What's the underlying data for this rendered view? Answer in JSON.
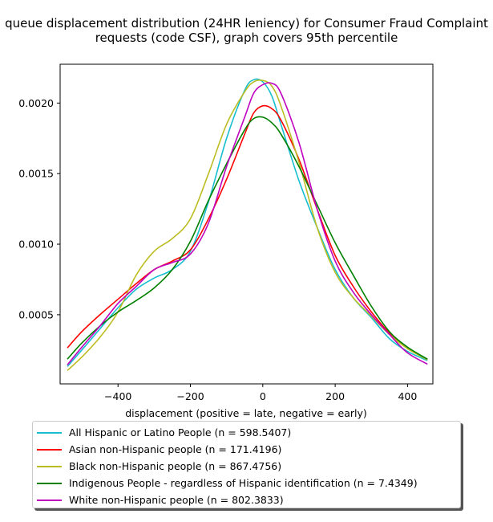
{
  "chart_data": {
    "type": "line",
    "title": "queue displacement distribution (24HR leniency) for Consumer Fraud Complaint  requests (code CSF), graph covers 95th percentile",
    "xlabel": "displacement (positive = late, negative = early)",
    "ylabel": "",
    "xlim": [
      -560,
      470
    ],
    "ylim": [
      1e-05,
      0.002275
    ],
    "xticks": [
      -400,
      -200,
      0,
      200,
      400
    ],
    "xtick_labels": [
      "−400",
      "−200",
      "0",
      "200",
      "400"
    ],
    "yticks": [
      0.0005,
      0.001,
      0.0015,
      0.002
    ],
    "ytick_labels": [
      "0.0005",
      "0.0010",
      "0.0015",
      "0.0020"
    ],
    "grid": false,
    "legend_position": "bottom",
    "x": [
      -540,
      -500,
      -450,
      -400,
      -350,
      -300,
      -250,
      -200,
      -150,
      -100,
      -50,
      -25,
      0,
      25,
      50,
      100,
      150,
      200,
      250,
      300,
      350,
      400,
      455
    ],
    "series": [
      {
        "name": "All Hispanic or Latino People (n = 598.5407)",
        "color": "#17becf",
        "values": [
          0.000133,
          0.00025,
          0.0004,
          0.00055,
          0.00068,
          0.00076,
          0.00082,
          0.00095,
          0.0013,
          0.00175,
          0.00209,
          0.002165,
          0.00215,
          0.00205,
          0.00185,
          0.00145,
          0.00112,
          0.00082,
          0.00062,
          0.00048,
          0.00033,
          0.00024,
          0.000175
        ]
      },
      {
        "name": "Asian non-Hispanic people (n = 171.4196)",
        "color": "#ff0000",
        "values": [
          0.000265,
          0.00038,
          0.0005,
          0.00061,
          0.00072,
          0.00082,
          0.00088,
          0.00096,
          0.00118,
          0.00146,
          0.00178,
          0.00193,
          0.00198,
          0.00196,
          0.00188,
          0.0016,
          0.00125,
          0.00092,
          0.0007,
          0.00052,
          0.00037,
          0.00026,
          0.000185
        ]
      },
      {
        "name": "Black non-Hispanic people (n = 867.4756)",
        "color": "#bcbd22",
        "values": [
          0.000105,
          0.0002,
          0.00034,
          0.00052,
          0.00078,
          0.00095,
          0.00104,
          0.00118,
          0.0015,
          0.00185,
          0.00208,
          0.00215,
          0.00216,
          0.00212,
          0.00198,
          0.00158,
          0.00112,
          0.0008,
          0.00062,
          0.00049,
          0.00036,
          0.00026,
          0.00018
        ]
      },
      {
        "name": "Indigenous People - regardless of Hispanic identification (n = 7.4349)",
        "color": "#008000",
        "values": [
          0.000185,
          0.0003,
          0.00042,
          0.00052,
          0.0006,
          0.00069,
          0.00082,
          0.00102,
          0.00131,
          0.00157,
          0.00181,
          0.00189,
          0.0019,
          0.00186,
          0.00178,
          0.00155,
          0.00128,
          0.00101,
          0.00078,
          0.00056,
          0.00038,
          0.00027,
          0.000185
        ]
      },
      {
        "name": "White non-Hispanic people (n = 802.3833)",
        "color": "#bf00bf",
        "values": [
          0.000145,
          0.00027,
          0.00042,
          0.00058,
          0.0007,
          0.00082,
          0.00087,
          0.00093,
          0.00115,
          0.00155,
          0.0019,
          0.00207,
          0.00213,
          0.00214,
          0.00207,
          0.00172,
          0.00125,
          0.00088,
          0.00066,
          0.0005,
          0.00036,
          0.00023,
          0.00015
        ]
      }
    ]
  }
}
